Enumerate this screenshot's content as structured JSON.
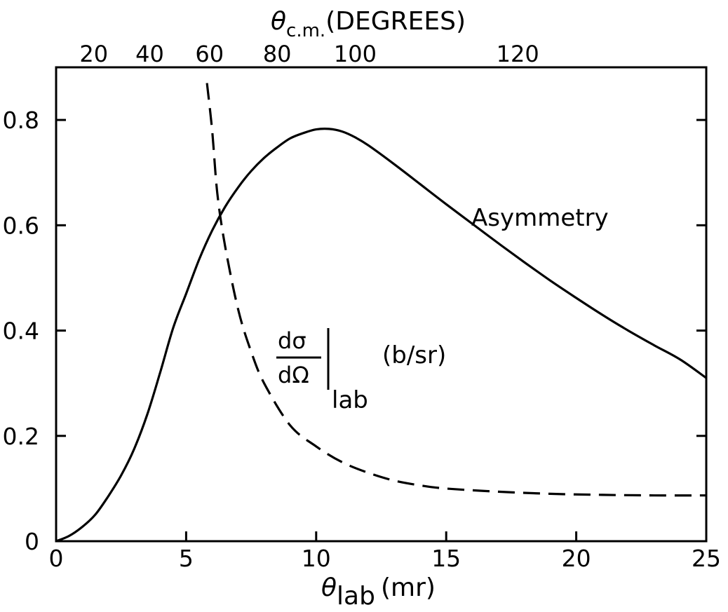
{
  "chart_data": {
    "type": "line",
    "xlabel": {
      "symbol": "θ",
      "subscript": "lab",
      "units": "(mr)"
    },
    "top_xlabel": {
      "symbol": "θ",
      "subscript": "c.m.",
      "units": "(DEGREES)"
    },
    "ylabel": "",
    "xlim": [
      0,
      25
    ],
    "ylim": [
      0,
      0.9
    ],
    "x_ticks": [
      "0",
      "5",
      "10",
      "15",
      "20",
      "25"
    ],
    "y_ticks": [
      {
        "value": 0,
        "label": "0"
      },
      {
        "value": 0.2,
        "label": "0.2"
      },
      {
        "value": 0.4,
        "label": "0.4"
      },
      {
        "value": 0.6,
        "label": "0.6"
      },
      {
        "value": 0.8,
        "label": "0.8"
      }
    ],
    "top_ticks": [
      {
        "x": 1.45,
        "label": "20"
      },
      {
        "x": 3.6,
        "label": "40"
      },
      {
        "x": 5.9,
        "label": "60"
      },
      {
        "x": 8.5,
        "label": "80"
      },
      {
        "x": 11.5,
        "label": "100"
      },
      {
        "x": 17.75,
        "label": "120"
      }
    ],
    "series": [
      {
        "name": "Asymmetry",
        "style": "solid",
        "x": [
          0,
          0.5,
          1,
          1.5,
          2,
          2.5,
          3,
          3.5,
          4,
          4.5,
          5,
          5.5,
          6,
          6.5,
          7,
          7.5,
          8,
          8.5,
          9,
          9.5,
          10,
          10.5,
          11,
          11.5,
          12,
          13,
          14,
          15,
          16,
          17,
          18,
          19,
          20,
          21,
          22,
          23,
          24,
          25
        ],
        "y": [
          0,
          0.01,
          0.027,
          0.05,
          0.085,
          0.125,
          0.175,
          0.24,
          0.32,
          0.405,
          0.47,
          0.535,
          0.59,
          0.635,
          0.672,
          0.703,
          0.728,
          0.748,
          0.765,
          0.775,
          0.782,
          0.783,
          0.778,
          0.767,
          0.752,
          0.716,
          0.678,
          0.64,
          0.603,
          0.566,
          0.53,
          0.495,
          0.462,
          0.43,
          0.4,
          0.372,
          0.345,
          0.31
        ]
      },
      {
        "name": "dσ/dΩ|lab (b/sr)",
        "style": "dashed",
        "x": [
          5.8,
          6.0,
          6.2,
          6.5,
          7.0,
          7.5,
          8.0,
          9.0,
          10.0,
          11.0,
          12.0,
          13.0,
          14.0,
          15.0,
          17.0,
          19.0,
          21.0,
          23.0,
          25.0
        ],
        "y": [
          0.87,
          0.78,
          0.66,
          0.56,
          0.44,
          0.36,
          0.3,
          0.22,
          0.18,
          0.15,
          0.13,
          0.115,
          0.106,
          0.1,
          0.094,
          0.09,
          0.088,
          0.087,
          0.087
        ]
      }
    ],
    "annotations": {
      "asymmetry": "Asymmetry",
      "cross_section": {
        "numerator": "dσ",
        "denominator": "dΩ",
        "subscript": "lab",
        "units": "(b/sr)"
      }
    }
  }
}
